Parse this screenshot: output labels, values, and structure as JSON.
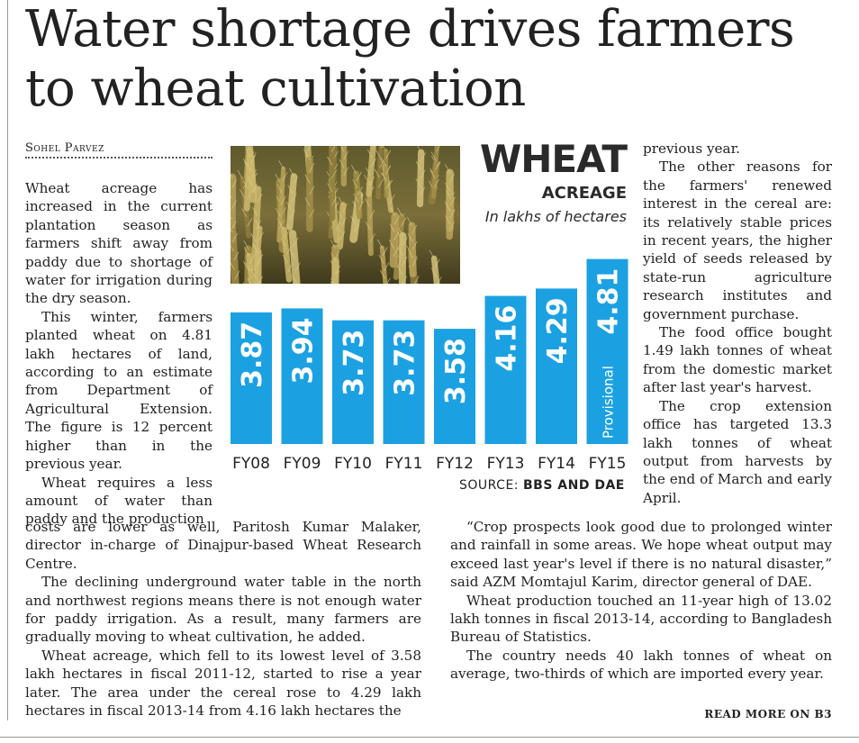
{
  "headline": "Water shortage drives farmers to wheat cultivation",
  "byline": "Sohel Parvez",
  "column_a_paragraphs": [
    "Wheat acreage has increased in the current plantation season as farmers shift away from paddy due to shortage of water for irrigation during the dry season.",
    "This winter, farmers planted wheat on 4.81 lakh hectares of land, according to an estimate from Department of Agricultural Extension. The figure is 12 percent higher than in the previous year.",
    "Wheat requires a less amount of water than paddy and the production"
  ],
  "column_a_wide_paragraphs": [
    "costs are lower as well, Paritosh Kumar Malaker, director in-charge of Dinajpur-based Wheat Research Centre.",
    "The declining underground water table in the north and northwest regions means there is not enough water for paddy irrigation. As a result, many farmers are gradually moving to wheat cultivation, he added.",
    "Wheat acreage, which fell to its lowest level of 3.58 lakh hectares in fiscal 2011-12, started to rise a year later. The area under the cereal rose to 4.29 lakh hectares in fiscal 2013-14 from 4.16 lakh hectares the"
  ],
  "column_c_paragraphs": [
    "previous year.",
    "The other reasons for the farmers' renewed interest in the cereal are: its relatively stable prices in recent years, the higher yield of seeds released by state-run agriculture research institutes and government purchase.",
    "The food office bought 1.49 lakh tonnes of wheat from the domestic market after last year's harvest.",
    "The crop extension office has targeted 13.3 lakh tonnes of wheat output from harvests by the end of March and early April."
  ],
  "column_c_wide_paragraphs": [
    "“Crop prospects look good due to prolonged winter and rainfall in some areas. We hope wheat output may exceed last year's level if there is no natural disaster,” said AZM Momtajul Karim, director general of DAE.",
    "Wheat production touched an 11-year high of 13.02 lakh tonnes in fiscal 2013-14, according to Bangladesh Bureau of Statistics.",
    "The country needs 40 lakh tonnes of wheat on average, two-thirds of which are imported every year."
  ],
  "read_more": "READ MORE ON B3",
  "photo_icon": "wheat-field-photo",
  "chart_data": {
    "type": "bar",
    "title": "WHEAT",
    "subtitle": "ACREAGE",
    "unit": "In lakhs of hectares",
    "categories": [
      "FY08",
      "FY09",
      "FY10",
      "FY11",
      "FY12",
      "FY13",
      "FY14",
      "FY15"
    ],
    "values": [
      3.87,
      3.94,
      3.73,
      3.73,
      3.58,
      4.16,
      4.29,
      4.81
    ],
    "value_labels": [
      "3.87",
      "3.94",
      "3.73",
      "3.73",
      "3.58",
      "4.16",
      "4.29",
      "4.81"
    ],
    "annotations": [
      {
        "category": "FY15",
        "text": "Provisional"
      }
    ],
    "source_label": "SOURCE:",
    "source_value": "BBS AND DAE",
    "bar_color": "#1ba1e2",
    "grid": false
  }
}
